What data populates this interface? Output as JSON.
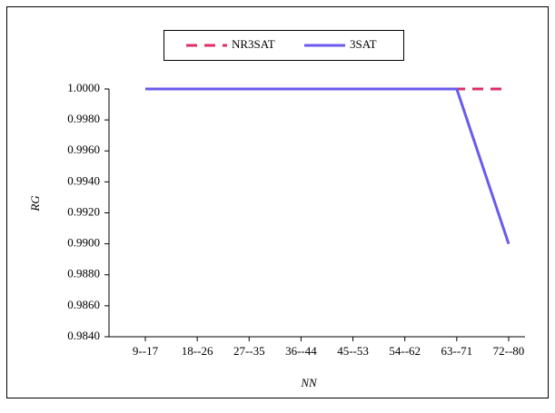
{
  "chart_data": {
    "type": "line",
    "x_label": "NN",
    "y_label": "RG",
    "categories": [
      "9--17",
      "18--26",
      "27--35",
      "36--44",
      "45--53",
      "54--62",
      "63--71",
      "72--80"
    ],
    "series": [
      {
        "name": "NR3SAT",
        "color": "#dc2f64",
        "dashed": true,
        "values": [
          1,
          1,
          1,
          1,
          1,
          1,
          1,
          1
        ]
      },
      {
        "name": "3SAT",
        "color": "#6a5aed",
        "dashed": false,
        "values": [
          1,
          1,
          1,
          1,
          1,
          1,
          1,
          0.99
        ]
      }
    ],
    "ylim": [
      0.984,
      1.0
    ],
    "yticks": [
      {
        "value": 0.984,
        "label": "0.9840"
      },
      {
        "value": 0.986,
        "label": "0.9860"
      },
      {
        "value": 0.988,
        "label": "0.9880"
      },
      {
        "value": 0.99,
        "label": "0.9900"
      },
      {
        "value": 0.992,
        "label": "0.9920"
      },
      {
        "value": 0.994,
        "label": "0.9940"
      },
      {
        "value": 0.996,
        "label": "0.9960"
      },
      {
        "value": 0.998,
        "label": "0.9980"
      },
      {
        "value": 1.0,
        "label": "1.0000"
      }
    ],
    "legend": "top"
  }
}
